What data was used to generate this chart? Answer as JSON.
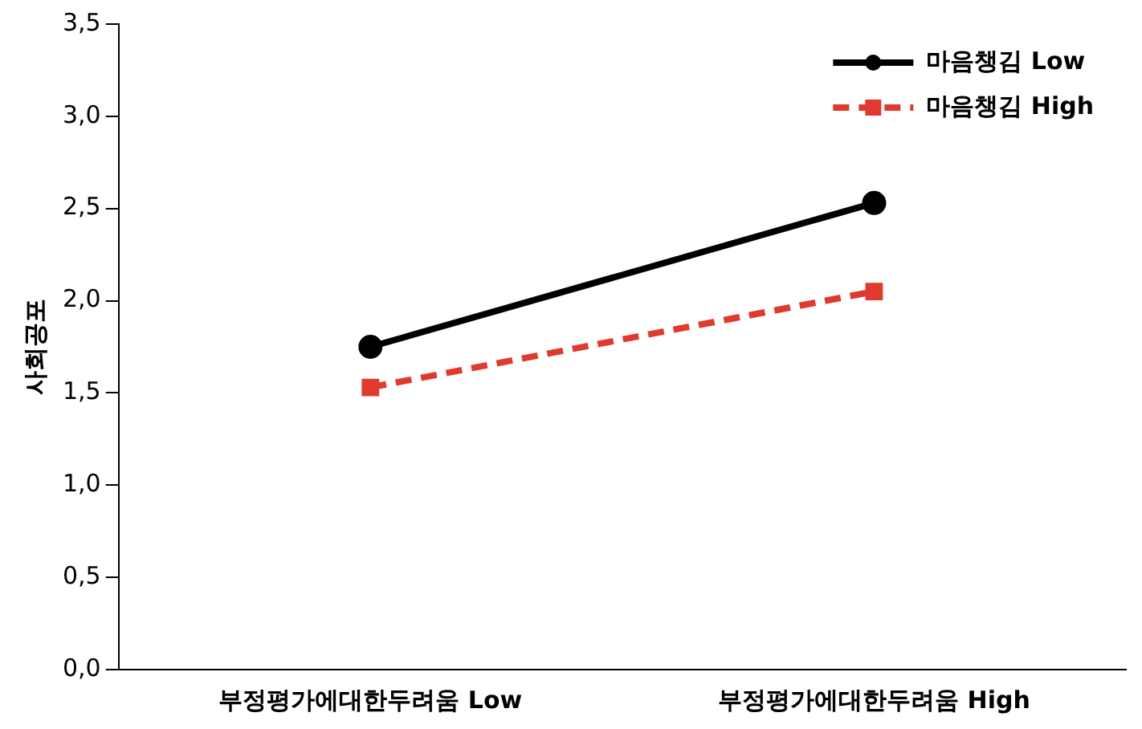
{
  "chart_data": {
    "type": "line",
    "ylabel": "사회공포",
    "categories": [
      "부정평가에대한두려움 Low",
      "부정평가에대한두려움 High"
    ],
    "series": [
      {
        "name": "마음챙김 Low",
        "color": "#000000",
        "values": [
          1.75,
          2.53
        ],
        "marker": "circle",
        "line_style": "solid"
      },
      {
        "name": "마음챙김 High",
        "color": "#e03a2f",
        "values": [
          1.53,
          2.05
        ],
        "marker": "square",
        "line_style": "dashed"
      }
    ],
    "ylim": [
      0,
      3.5
    ],
    "yticks": [
      {
        "value": 0,
        "label": "0,0"
      },
      {
        "value": 0.5,
        "label": "0,5"
      },
      {
        "value": 1,
        "label": "1,0"
      },
      {
        "value": 1.5,
        "label": "1,5"
      },
      {
        "value": 2,
        "label": "2,0"
      },
      {
        "value": 2.5,
        "label": "2,5"
      },
      {
        "value": 3,
        "label": "3,0"
      },
      {
        "value": 3.5,
        "label": "3,5"
      }
    ],
    "grid": false,
    "legend": "top right"
  }
}
